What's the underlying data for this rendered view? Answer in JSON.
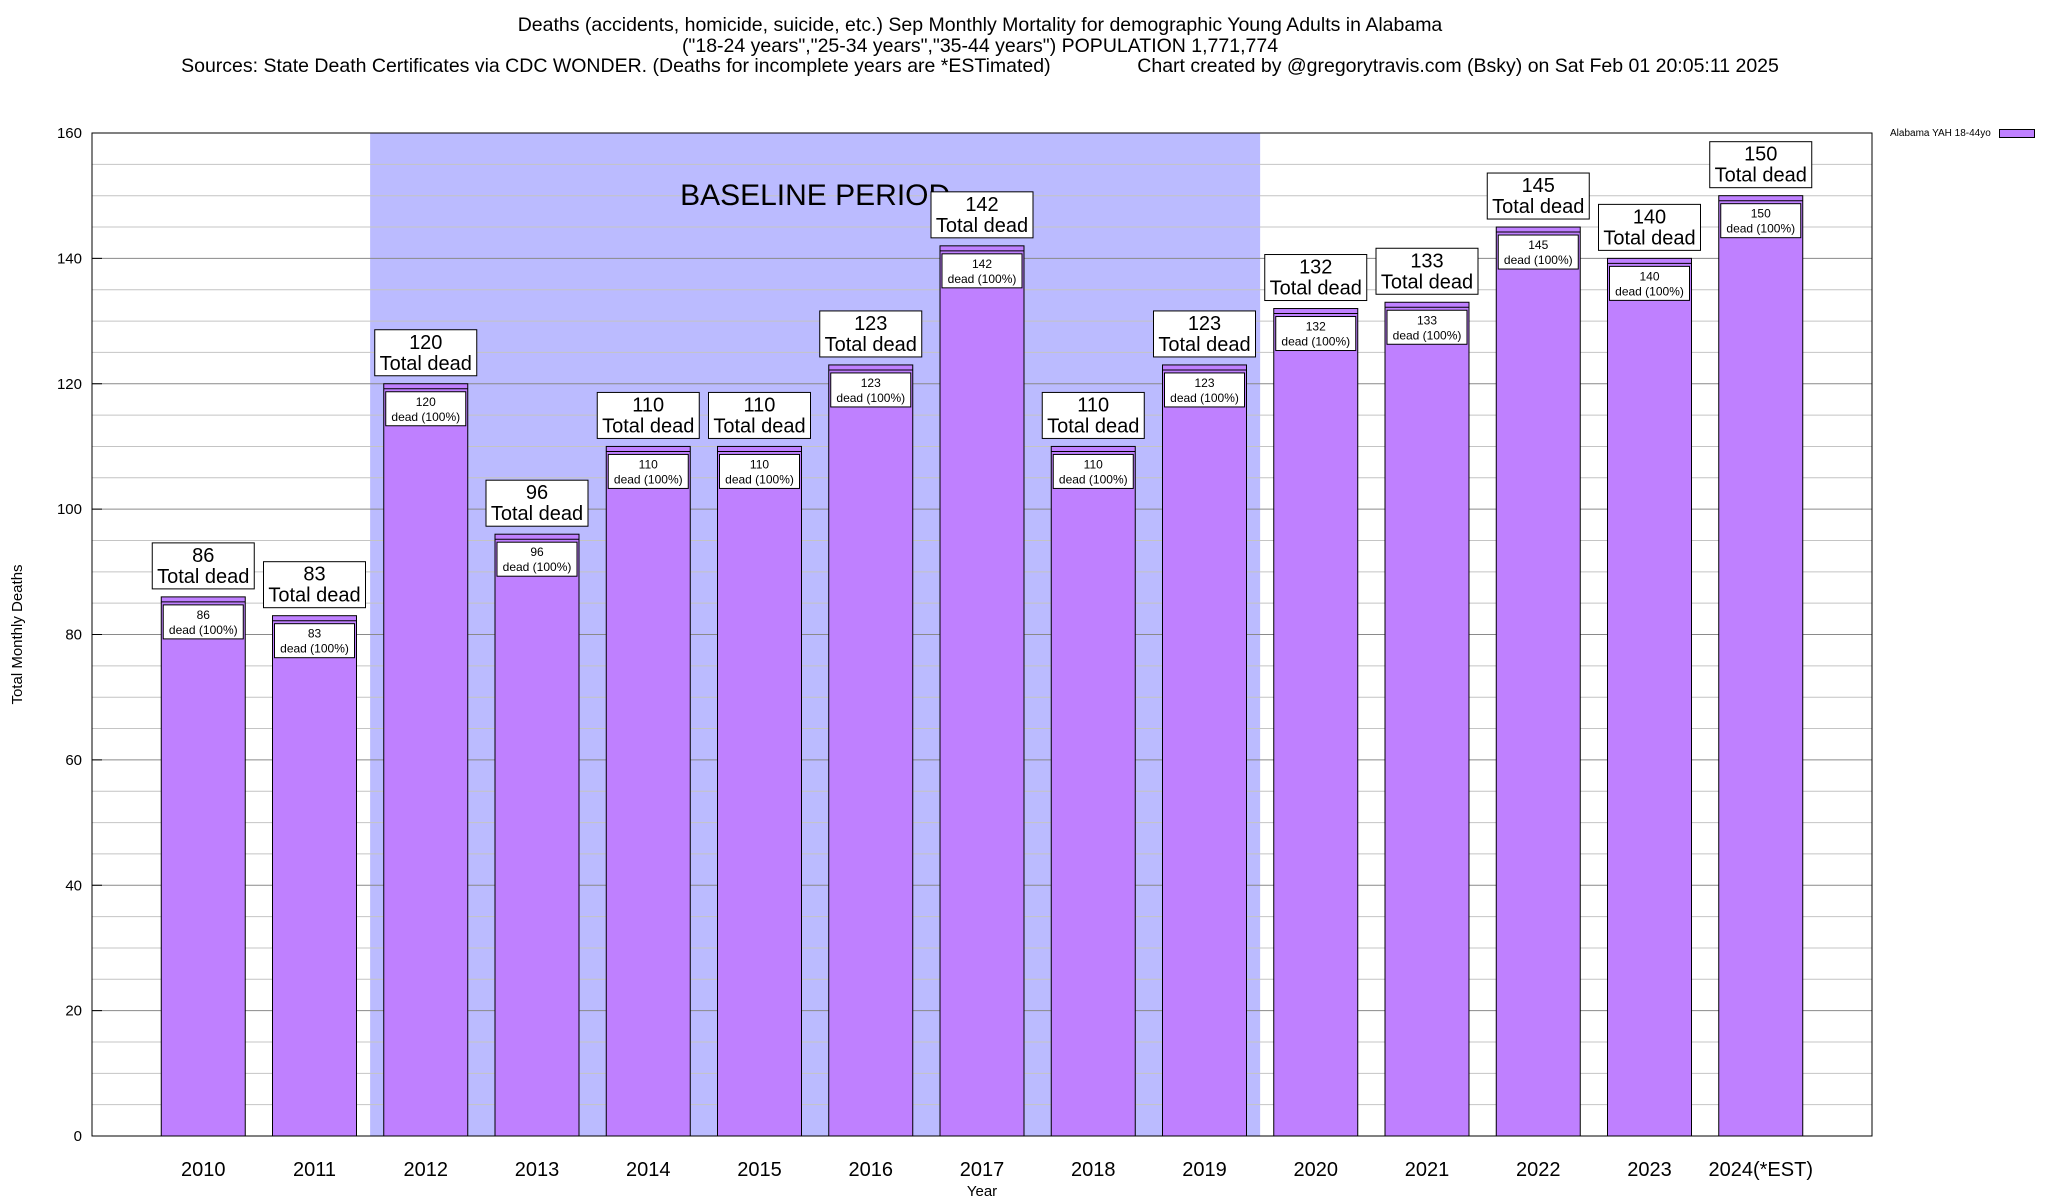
{
  "title": {
    "line1": "Deaths (accidents, homicide, suicide, etc.) Sep Monthly Mortality for demographic Young Adults in Alabama",
    "line2": "(\"18-24 years\",\"25-34 years\",\"35-44 years\") POPULATION 1,771,774",
    "line3": "Sources: State Death Certificates via CDC WONDER. (Deaths for incomplete years are *ESTimated)                Chart created by @gregorytravis.com (Bsky) on Sat Feb 01 20:05:11 2025"
  },
  "legend": {
    "label": "Alabama YAH 18-44yo",
    "color": "#bf80ff"
  },
  "chart_data": {
    "type": "bar",
    "categories": [
      "2010",
      "2011",
      "2012",
      "2013",
      "2014",
      "2015",
      "2016",
      "2017",
      "2018",
      "2019",
      "2020",
      "2021",
      "2022",
      "2023",
      "2024(*EST)"
    ],
    "series": [
      {
        "name": "Alabama YAH 18-44yo",
        "values": [
          86,
          83,
          120,
          96,
          110,
          110,
          123,
          142,
          110,
          123,
          132,
          133,
          145,
          140,
          150
        ]
      }
    ],
    "xlabel": "Year",
    "ylabel": "Total Monthly Deaths",
    "ylim": [
      0,
      160
    ],
    "yticks": [
      0,
      20,
      40,
      60,
      80,
      100,
      120,
      140,
      160
    ],
    "grid": true,
    "legend_position": "top-right",
    "top_label_suffix": "Total dead",
    "inner_label_suffix": "dead (100%)",
    "baseline": {
      "label": "BASELINE PERIOD",
      "from": "2012",
      "to": "2019",
      "color": "#bbbbff"
    },
    "bar_color": "#bf80ff"
  }
}
